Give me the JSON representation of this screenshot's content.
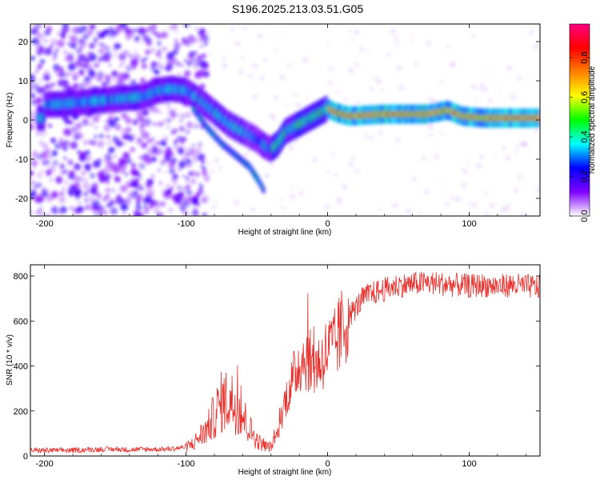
{
  "page": {
    "title": "S196.2025.213.03.51.G05"
  },
  "chart_data": [
    {
      "type": "heatmap",
      "xlabel": "Height of straight line (km)",
      "ylabel": "Frequency (Hz)",
      "xlim": [
        -210,
        150
      ],
      "ylim": [
        -24.5,
        24.5
      ],
      "xticks": [
        -200,
        -100,
        0,
        100
      ],
      "yticks": [
        -20,
        -10,
        0,
        10,
        20
      ],
      "colorbar": {
        "label": "Normalized spectral amplitude",
        "range": [
          0,
          0.97
        ],
        "ticks": [
          0.0,
          0.2,
          0.4,
          0.6,
          0.8
        ],
        "colors": [
          "#ffffff",
          "#8000ff",
          "#0000ff",
          "#00ffff",
          "#00ff00",
          "#ffff00",
          "#ff8000",
          "#ff0000",
          "#ff0080"
        ]
      },
      "ridge": [
        {
          "x": -200,
          "y": 4
        },
        {
          "x": -190,
          "y": 4
        },
        {
          "x": -175,
          "y": 4.5
        },
        {
          "x": -160,
          "y": 5
        },
        {
          "x": -145,
          "y": 5.5
        },
        {
          "x": -130,
          "y": 6
        },
        {
          "x": -120,
          "y": 7.5
        },
        {
          "x": -110,
          "y": 8
        },
        {
          "x": -100,
          "y": 7.5
        },
        {
          "x": -90,
          "y": 5
        },
        {
          "x": -80,
          "y": 2
        },
        {
          "x": -70,
          "y": -1
        },
        {
          "x": -60,
          "y": -3
        },
        {
          "x": -50,
          "y": -5
        },
        {
          "x": -45,
          "y": -6.5
        },
        {
          "x": -40,
          "y": -7.5
        },
        {
          "x": -35,
          "y": -6
        },
        {
          "x": -30,
          "y": -3
        },
        {
          "x": -20,
          "y": -1
        },
        {
          "x": -10,
          "y": 1
        },
        {
          "x": 0,
          "y": 3
        },
        {
          "x": 5,
          "y": 2
        },
        {
          "x": 15,
          "y": 1
        },
        {
          "x": 40,
          "y": 1.5
        },
        {
          "x": 70,
          "y": 1.5
        },
        {
          "x": 85,
          "y": 2.5
        },
        {
          "x": 95,
          "y": 1
        },
        {
          "x": 110,
          "y": 0.5
        },
        {
          "x": 130,
          "y": 0.5
        },
        {
          "x": 150,
          "y": 0.5
        }
      ],
      "branch": [
        {
          "x": -95,
          "y": 3
        },
        {
          "x": -85,
          "y": -2
        },
        {
          "x": -75,
          "y": -6
        },
        {
          "x": -65,
          "y": -9
        },
        {
          "x": -55,
          "y": -12
        },
        {
          "x": -48,
          "y": -16
        },
        {
          "x": -45,
          "y": -18
        }
      ]
    },
    {
      "type": "line",
      "xlabel": "Height of straight line (km)",
      "ylabel": "SNR (10 * v/v)",
      "xlim": [
        -210,
        150
      ],
      "ylim": [
        0,
        850
      ],
      "xticks": [
        -200,
        -100,
        0,
        100
      ],
      "yticks": [
        0,
        200,
        400,
        600,
        800
      ],
      "series": [
        {
          "color": "#e8302c",
          "x": [
            -210,
            -200,
            -190,
            -180,
            -170,
            -160,
            -150,
            -140,
            -130,
            -120,
            -110,
            -100,
            -95,
            -90,
            -85,
            -80,
            -75,
            -70,
            -65,
            -60,
            -55,
            -50,
            -45,
            -40,
            -35,
            -30,
            -25,
            -20,
            -15,
            -10,
            -5,
            0,
            5,
            10,
            15,
            20,
            25,
            30,
            35,
            40,
            45,
            50,
            55,
            60,
            70,
            80,
            90,
            100,
            110,
            120,
            130,
            140,
            150
          ],
          "values": [
            25,
            25,
            25,
            25,
            28,
            30,
            30,
            28,
            30,
            30,
            32,
            40,
            55,
            90,
            120,
            180,
            240,
            250,
            230,
            180,
            120,
            70,
            45,
            40,
            110,
            250,
            330,
            420,
            440,
            400,
            420,
            470,
            490,
            560,
            620,
            660,
            700,
            720,
            730,
            740,
            750,
            760,
            760,
            765,
            770,
            765,
            760,
            755,
            760,
            755,
            760,
            755,
            750
          ]
        }
      ]
    }
  ]
}
